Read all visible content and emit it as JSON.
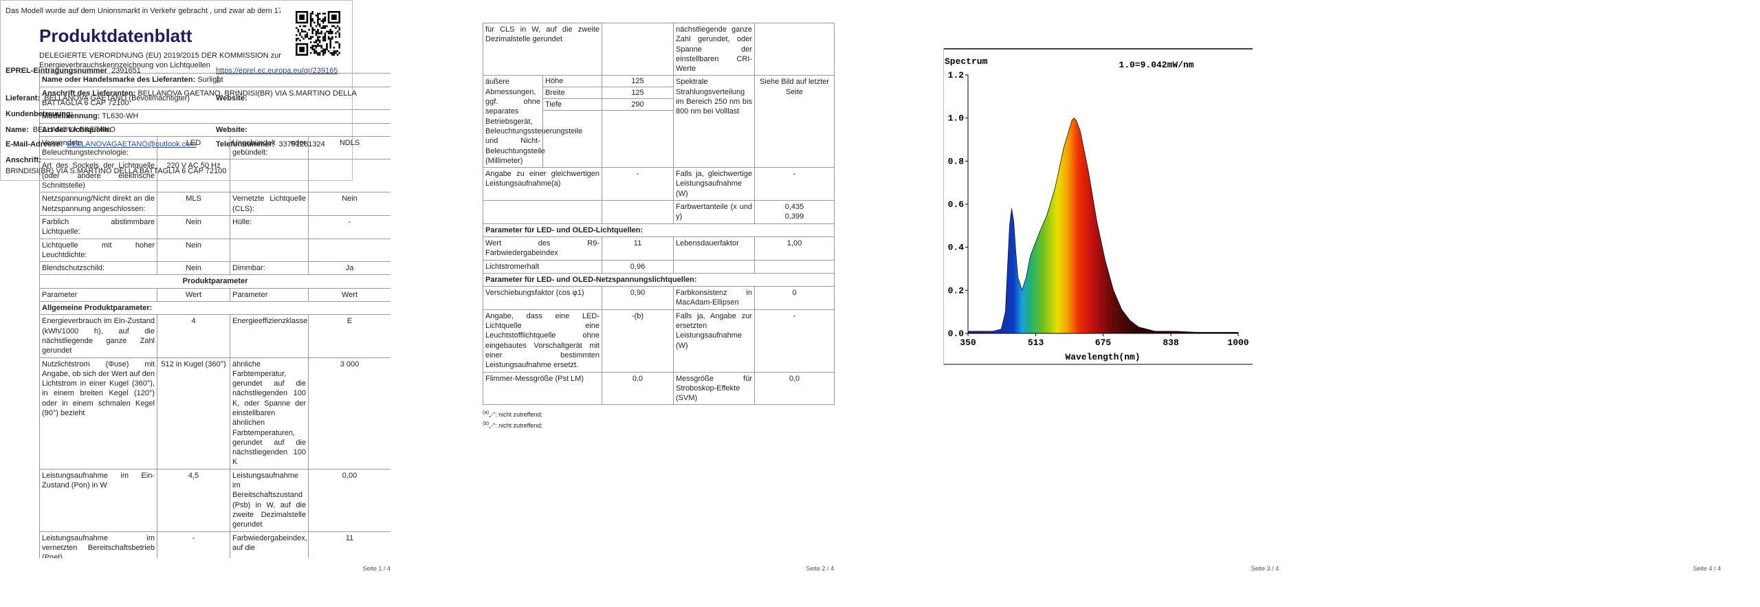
{
  "pages": [
    {
      "title": "Produktdatenblatt",
      "subtitle": "DELEGIERTE VERORDNUNG (EU) 2019/2015 DER KOMMISSION zur Energieverbrauchskennzeichnung von Lichtquellen",
      "blocks": [
        {
          "field": {
            "label": "Name oder Handelsmarke des Lieferanten:",
            "value": "Surlight"
          }
        },
        {
          "field": {
            "label": "Anschrift des Lieferanten:",
            "value": "BELLANOVA GAETANO, BRINDISI(BR) VIA S.MARTINO DELLA BATTAGLIA 6 CAP 72100"
          }
        },
        {
          "field": {
            "label": "Modellkennung:",
            "value": "TL630-WH"
          }
        },
        {
          "heading": "Art der Lichtquelle:"
        },
        {
          "cells": [
            "Verwendete Beleuchtungstechnologie:",
            "LED",
            "Ungebündelt oder gebündelt:",
            "NDLS"
          ]
        },
        {
          "cells": [
            "Art des Sockels der Lichtquelle (oder andere elektrische Schnittstelle)",
            "220 V AC 50 Hz",
            null,
            null
          ]
        },
        {
          "cells": [
            "Netzspannung/Nicht direkt an die Netzspannung angeschlossen:",
            "MLS",
            "Vernetzte Lichtquelle (CLS):",
            "Nein"
          ]
        },
        {
          "cells": [
            "Farblich abstimmbare Lichtquelle:",
            "Nein",
            "Hülle:",
            "-"
          ]
        },
        {
          "cells": [
            "Lichtquelle mit hoher Leuchtdichte:",
            "Nein",
            null,
            null
          ]
        },
        {
          "cells": [
            "Blendschutzschild:",
            "Nein",
            "Dimmbar:",
            "Ja"
          ]
        },
        {
          "section": "Produktparameter"
        },
        {
          "cells": [
            "Parameter",
            "Wert",
            "Parameter",
            "Wert"
          ]
        },
        {
          "heading": "Allgemeine Produktparameter:"
        },
        {
          "cells": [
            "Energieverbrauch im Ein-Zustand (kWh/1000 h), auf die nächstliegende ganze Zahl gerundet",
            "4",
            "Energieeffizienzklasse",
            "E"
          ]
        },
        {
          "cells": [
            "Nutzlichtstrom (Φuse) mit Angabe, ob sich der Wert auf den Lichtstrom in einer Kugel (360°), in einem breiten Kegel (120°) oder in einem schmalen Kegel (90°) bezieht",
            "512 in Kugel (360°)",
            "ähnliche Farbtemperatur, gerundet auf die nächstliegenden 100 K, oder Spanne der einstellbaren ähnlichen Farbtemperaturen, gerundet auf die nächstliegenden 100 K",
            "3 000"
          ]
        },
        {
          "cells": [
            "Leistungsaufnahme im Ein-Zustand (Pon) in W",
            "4,5",
            "Leistungsaufnahme im Bereitschaftszustand (Psb) in W, auf die zweite Dezimalstelle gerundet",
            "0,00"
          ]
        },
        {
          "cells": [
            "Leistungsaufnahme im vernetzten Bereitschaftsbetrieb (Pnet)",
            "-",
            "Farbwiedergabeindex, auf die",
            "11"
          ]
        }
      ],
      "footer": "Seite 1 / 4"
    },
    {
      "blocks": [
        {
          "cells": [
            "für CLS in W, auf die zweite Dezimalstelle gerundet",
            null,
            "nächstliegende ganze Zahl gerundet, oder Spanne der einstellbaren CRI-Werte",
            null
          ]
        },
        {
          "dimensions": {
            "label": "äußere Abmessungen, ggf. ohne separates Betriebsgerät, Beleuchtungssteuerungsteile und Nicht-Beleuchtungsteile (Millimeter)",
            "items": [
              {
                "name": "Höhe",
                "value": "125"
              },
              {
                "name": "Breite",
                "value": "125"
              },
              {
                "name": "Tiefe",
                "value": "290"
              }
            ],
            "parameter": "Spektrale Strahlungsverteilung im Bereich 250 nm bis 800 nm bei Volllast",
            "value": "Siehe Bild auf letzter Seite"
          }
        },
        {
          "cells": [
            "Angabe zu einer gleichwertigen Leistungsaufnahme(a)",
            "-",
            "Falls ja, gleichwertige Leistungsaufnahme (W)",
            "-"
          ]
        },
        {
          "cells": [
            null,
            null,
            "Farbwertanteile (x und y)",
            "0,435\n0,399"
          ]
        },
        {
          "heading": "Parameter für LED- und OLED-Lichtquellen:"
        },
        {
          "cells": [
            "Wert des R9-Farbwiedergabeindex",
            "11",
            "Lebensdauerfaktor",
            "1,00"
          ]
        },
        {
          "cells": [
            "Lichtstromerhalt",
            "0,96",
            null,
            null
          ]
        },
        {
          "heading": "Parameter für LED- und OLED-Netzspannungslichtquellen:"
        },
        {
          "cells": [
            "Verschiebungsfaktor (cos φ1)",
            "0,90",
            "Farbkonsistenz in MacAdam-Ellipsen",
            "0"
          ]
        },
        {
          "cells": [
            "Angabe, dass eine LED-Lichtquelle eine Leuchtstofflichtquelle ohne eingebautes Vorschaltgerät mit einer bestimmten Leistungsaufnahme ersetzt.",
            "-(b)",
            "Falls ja, Angabe zur ersetzten Leistungsaufnahme (W)",
            "-"
          ]
        },
        {
          "cells": [
            "Flimmer-Messgröße (Pst LM)",
            "0,0",
            "Messgröße für Stroboskop-Effekte (SVM)",
            "0,0"
          ]
        }
      ],
      "footnotes": [
        {
          "mark": "(a)",
          "text": "„-“: nicht zutreffend;"
        },
        {
          "mark": "(b)",
          "text": "„-“: nicht zutreffend;"
        }
      ],
      "footer": "Seite 2 / 4"
    },
    {
      "chart_data": {
        "type": "area",
        "title": "Spectrum",
        "annotation": "1.0=9.042mW/nm",
        "x_label": "Wavelength(nm)",
        "x": [
          350,
          380,
          410,
          430,
          440,
          445,
          450,
          455,
          460,
          465,
          470,
          480,
          490,
          500,
          520,
          540,
          560,
          580,
          600,
          605,
          610,
          620,
          640,
          660,
          680,
          700,
          720,
          740,
          760,
          780,
          800,
          850,
          900,
          950,
          1000
        ],
        "values": [
          0.01,
          0.01,
          0.01,
          0.02,
          0.1,
          0.3,
          0.5,
          0.58,
          0.52,
          0.38,
          0.26,
          0.2,
          0.26,
          0.36,
          0.46,
          0.55,
          0.68,
          0.86,
          0.99,
          1.0,
          0.99,
          0.94,
          0.75,
          0.52,
          0.34,
          0.2,
          0.11,
          0.06,
          0.03,
          0.02,
          0.01,
          0.01,
          0.005,
          0.005,
          0.005
        ],
        "xlim": [
          350,
          1000
        ],
        "xticks": [
          350,
          513,
          675,
          838,
          1000
        ],
        "ylim": [
          0,
          1.2
        ],
        "yticks": [
          {
            "value": 0,
            "label": "0.0"
          },
          {
            "value": 0.2,
            "label": "0.2"
          },
          {
            "value": 0.4,
            "label": "0.4"
          },
          {
            "value": 0.6,
            "label": "0.6"
          },
          {
            "value": 0.8,
            "label": "0.8"
          },
          {
            "value": 1,
            "label": "1.0"
          },
          {
            "value": 1.2,
            "label": "1.2"
          }
        ]
      },
      "footer": "Seite 3 / 4"
    },
    {
      "notice": "Das Modell wurde auf dem Unionsmarkt in Verkehr gebracht , und zwar ab dem 17",
      "registration": {
        "label": "EPREL-Eintragungsnummer",
        "value": "2391651",
        "link": "https://eprel.ec.europa.eu/qr/2391651"
      },
      "supplier": {
        "label": "Lieferant:",
        "value": "BELLANOVA GAETANO (Bevollmächtigter)",
        "website_label": "Website:"
      },
      "customer_service": {
        "heading": "Kundenbetreuung:",
        "name_label": "Name:",
        "name": "BELLANOVA GAETANO",
        "website_label": "Website:",
        "email_label": "E-Mail-Adresse:",
        "email": "BELLANOVAGAETANO@outlook.com",
        "phone_label": "Telefonnummer:",
        "phone": "33751281324",
        "address_label": "Anschrift:",
        "address": "BRINDISI(BR) VIA S.MARTINO DELLA BATTAGLIA 6 CAP 72100"
      },
      "footer": "Seite 4 / 4"
    }
  ]
}
